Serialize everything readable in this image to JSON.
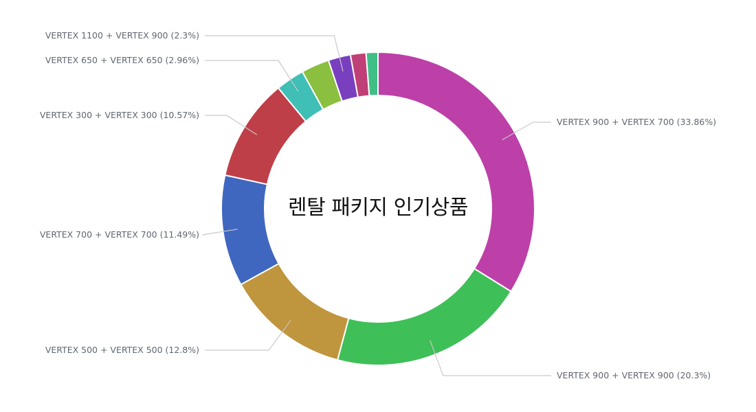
{
  "chart_data": {
    "type": "pie",
    "variant": "donut",
    "title": "렌탈 패키지 인기상품",
    "slices": [
      {
        "label": "VERTEX 900 + VERTEX 700 (33.86%)",
        "name": "VERTEX 900 + VERTEX 700",
        "value": 33.86,
        "color": "#bd3fa8"
      },
      {
        "label": "VERTEX 900 + VERTEX 900 (20.3%)",
        "name": "VERTEX 900 + VERTEX 900",
        "value": 20.3,
        "color": "#3fbf58"
      },
      {
        "label": "VERTEX 500 + VERTEX 500 (12.8%)",
        "name": "VERTEX 500 + VERTEX 500",
        "value": 12.8,
        "color": "#bf953e"
      },
      {
        "label": "VERTEX 700 + VERTEX 700 (11.49%)",
        "name": "VERTEX 700 + VERTEX 700",
        "value": 11.49,
        "color": "#3f67bf"
      },
      {
        "label": "VERTEX 300 + VERTEX 300 (10.57%)",
        "name": "VERTEX 300 + VERTEX 300",
        "value": 10.57,
        "color": "#bf3f48"
      },
      {
        "label": "VERTEX 650 + VERTEX 650 (2.96%)",
        "name": "VERTEX 650 + VERTEX 650",
        "value": 2.96,
        "color": "#3fbfb5"
      },
      {
        "label": "",
        "name": "",
        "value": 2.9,
        "color": "#8abf3f"
      },
      {
        "label": "VERTEX 1100 + VERTEX 900 (2.3%)",
        "name": "VERTEX 1100 + VERTEX 900",
        "value": 2.3,
        "color": "#7a3fbf"
      },
      {
        "label": "",
        "name": "",
        "value": 1.6,
        "color": "#bf3f77"
      },
      {
        "label": "",
        "name": "",
        "value": 1.22,
        "color": "#3fbf86"
      }
    ],
    "legend": "none"
  }
}
